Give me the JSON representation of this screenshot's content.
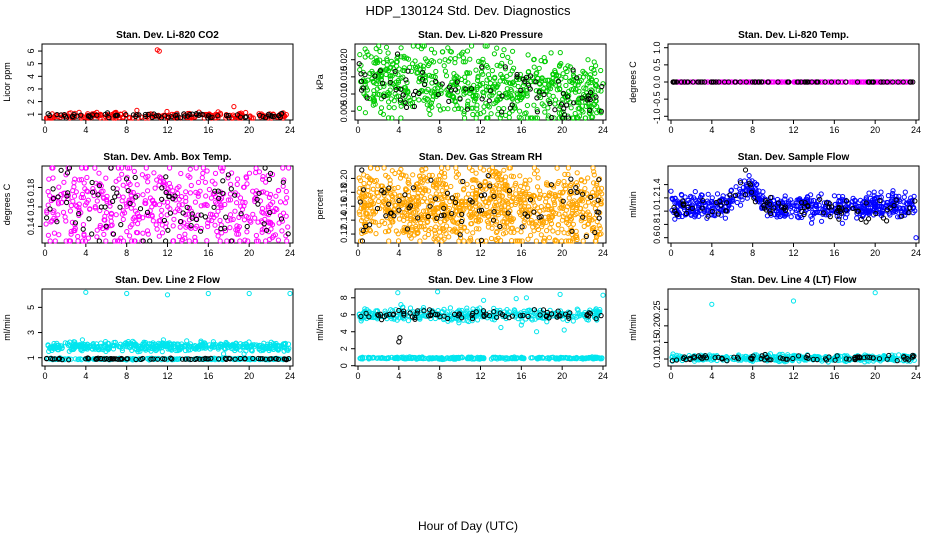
{
  "title": "HDP_130124  Std. Dev. Diagnostics",
  "xlabel": "Hour of Day (UTC)",
  "colors": {
    "black": "#000000",
    "red": "#ff0000",
    "green": "#00cc00",
    "magenta": "#ff00ff",
    "orange": "#ffa500",
    "blue": "#0000ff",
    "cyan": "#00e5ee"
  },
  "chart_data": [
    {
      "type": "scatter",
      "title": "Stan. Dev. Li-820 CO2",
      "ylabel": "Licor ppm",
      "xticks": [
        "0",
        "4",
        "8",
        "12",
        "16",
        "20",
        "24"
      ],
      "yticks": [
        "1",
        "2",
        "3",
        "4",
        "5",
        "6"
      ],
      "ytick_values": [
        1,
        2,
        3,
        4,
        5,
        6
      ],
      "xlim": [
        0,
        24
      ],
      "ylim": [
        0.7,
        6.4
      ],
      "series": [
        {
          "color": "red",
          "base": 0.85,
          "spread": 0.15,
          "n": 220,
          "outliers": [
            [
              11.0,
              6.1
            ],
            [
              11.2,
              6.0
            ],
            [
              18.5,
              1.6
            ],
            [
              9.0,
              1.3
            ]
          ]
        },
        {
          "color": "black",
          "base": 0.88,
          "spread": 0.1,
          "n": 80,
          "outliers": []
        }
      ]
    },
    {
      "type": "scatter",
      "title": "Stan. Dev. Li-820 Pressure",
      "ylabel": "kPa",
      "xticks": [
        "0",
        "4",
        "8",
        "12",
        "16",
        "20",
        "24"
      ],
      "yticks": [
        "0.005",
        "0.010",
        "0.015",
        "0.020"
      ],
      "ytick_values": [
        0.005,
        0.01,
        0.015,
        0.02
      ],
      "xlim": [
        0,
        24
      ],
      "ylim": [
        0.003,
        0.024
      ],
      "series": [
        {
          "color": "green",
          "base": 0.012,
          "spread": 0.005,
          "n": 700,
          "trend": -0.0002,
          "outliers": [
            [
              7.2,
              0.023
            ],
            [
              7.5,
              0.022
            ],
            [
              24,
              0.013
            ]
          ]
        },
        {
          "color": "black",
          "base": 0.0115,
          "spread": 0.004,
          "n": 90,
          "trend": -0.0002,
          "outliers": []
        }
      ]
    },
    {
      "type": "scatter",
      "title": "Stan. Dev. Li-820 Temp.",
      "ylabel": "degrees C",
      "xticks": [
        "0",
        "4",
        "8",
        "12",
        "16",
        "20",
        "24"
      ],
      "yticks": [
        "-1.0",
        "-0.5",
        "0.0",
        "0.5",
        "1.0"
      ],
      "ytick_values": [
        -1.0,
        -0.5,
        0.0,
        0.5,
        1.0
      ],
      "xlim": [
        0,
        24
      ],
      "ylim": [
        -1.05,
        1.05
      ],
      "series": [
        {
          "color": "magenta",
          "base": 0.0,
          "spread": 0.0,
          "n": 260,
          "outliers": []
        },
        {
          "color": "black",
          "base": 0.0,
          "spread": 0.0,
          "n": 80,
          "outliers": []
        }
      ]
    },
    {
      "type": "scatter",
      "title": "Stan. Dev. Amb. Box Temp.",
      "ylabel": "degrees C",
      "xticks": [
        "0",
        "4",
        "8",
        "12",
        "16",
        "20",
        "24"
      ],
      "yticks": [
        "0.14",
        "0.16",
        "0.18"
      ],
      "ytick_values": [
        0.14,
        0.16,
        0.18
      ],
      "xlim": [
        0,
        24
      ],
      "ylim": [
        0.125,
        0.2
      ],
      "series": [
        {
          "color": "magenta",
          "base": 0.16,
          "spread": 0.022,
          "n": 500,
          "outliers": []
        },
        {
          "color": "black",
          "base": 0.16,
          "spread": 0.02,
          "n": 90,
          "outliers": [
            [
              2.2,
              0.195
            ]
          ]
        }
      ]
    },
    {
      "type": "scatter",
      "title": "Stan. Dev. Gas Stream RH",
      "ylabel": "percent",
      "xticks": [
        "0",
        "4",
        "8",
        "12",
        "16",
        "20",
        "24"
      ],
      "yticks": [
        "0.12",
        "0.14",
        "0.16",
        "0.18",
        "0.20"
      ],
      "ytick_values": [
        0.12,
        0.14,
        0.16,
        0.18,
        0.2
      ],
      "xlim": [
        0,
        24
      ],
      "ylim": [
        0.11,
        0.215
      ],
      "series": [
        {
          "color": "orange",
          "base": 0.16,
          "spread": 0.028,
          "n": 1000,
          "outliers": [
            [
              13.5,
              0.21
            ],
            [
              13.8,
              0.205
            ],
            [
              13.5,
              0.112
            ]
          ]
        },
        {
          "color": "black",
          "base": 0.16,
          "spread": 0.02,
          "n": 80,
          "outliers": []
        }
      ]
    },
    {
      "type": "scatter",
      "title": "Stan. Dev. Sample Flow",
      "ylabel": "ml/min",
      "xticks": [
        "0",
        "4",
        "8",
        "12",
        "16",
        "20",
        "24"
      ],
      "yticks": [
        "0.6",
        "0.8",
        "1.0",
        "1.2",
        "1.4"
      ],
      "ytick_values": [
        0.6,
        0.8,
        1.0,
        1.2,
        1.4
      ],
      "xlim": [
        0,
        24
      ],
      "ylim": [
        0.55,
        1.65
      ],
      "series": [
        {
          "color": "blue",
          "base": 1.07,
          "spread": 0.09,
          "n": 600,
          "bump": [
            7.5,
            0.3,
            1.2
          ],
          "outliers": [
            [
              24,
              0.6
            ],
            [
              0,
              1.3
            ]
          ]
        },
        {
          "color": "black",
          "base": 1.05,
          "spread": 0.1,
          "n": 90,
          "bump": [
            7.5,
            0.25,
            1.2
          ],
          "outliers": [
            [
              7.3,
              1.62
            ]
          ]
        }
      ]
    },
    {
      "type": "scatter",
      "title": "Stan. Dev. Line 2 Flow",
      "ylabel": "ml/min",
      "xticks": [
        "0",
        "4",
        "8",
        "12",
        "16",
        "20",
        "24"
      ],
      "yticks": [
        "1",
        "3",
        "5"
      ],
      "ytick_values": [
        1,
        3,
        5
      ],
      "xlim": [
        0,
        24
      ],
      "ylim": [
        0.5,
        6.3
      ],
      "series": [
        {
          "color": "cyan",
          "base": 1.9,
          "spread": 0.18,
          "n": 450,
          "outliers": [
            [
              4,
              6.2
            ],
            [
              8,
              6.1
            ],
            [
              12,
              6.0
            ],
            [
              16,
              6.1
            ],
            [
              20,
              6.1
            ],
            [
              24,
              6.1
            ],
            [
              17.5,
              1.3
            ],
            [
              19.5,
              1.3
            ]
          ]
        },
        {
          "color": "cyan",
          "base": 0.9,
          "spread": 0.03,
          "n": 250,
          "outliers": []
        },
        {
          "color": "black",
          "base": 0.9,
          "spread": 0.03,
          "n": 80,
          "outliers": []
        }
      ]
    },
    {
      "type": "scatter",
      "title": "Stan. Dev. Line 3 Flow",
      "ylabel": "ml/min",
      "xticks": [
        "0",
        "4",
        "8",
        "12",
        "16",
        "20",
        "24"
      ],
      "yticks": [
        "0",
        "2",
        "4",
        "6",
        "8"
      ],
      "ytick_values": [
        0,
        2,
        4,
        6,
        8
      ],
      "xlim": [
        0,
        24
      ],
      "ylim": [
        0.2,
        8.8
      ],
      "series": [
        {
          "color": "cyan",
          "base": 6.0,
          "spread": 0.35,
          "n": 350,
          "outliers": [
            [
              3.9,
              8.6
            ],
            [
              7.8,
              8.7
            ],
            [
              12.3,
              7.7
            ],
            [
              15.5,
              7.9
            ],
            [
              16.5,
              8.0
            ],
            [
              19.8,
              8.4
            ],
            [
              24,
              8.3
            ],
            [
              14,
              4.5
            ],
            [
              16,
              4.8
            ],
            [
              17.5,
              4.0
            ],
            [
              20.2,
              4.2
            ],
            [
              4.4,
              6.9
            ],
            [
              4.2,
              7.2
            ]
          ]
        },
        {
          "color": "cyan",
          "base": 0.9,
          "spread": 0.06,
          "n": 300,
          "outliers": []
        },
        {
          "color": "black",
          "base": 6.0,
          "spread": 0.25,
          "n": 80,
          "outliers": [
            [
              4.0,
              2.8
            ],
            [
              4.1,
              3.3
            ],
            [
              4.0,
              6.5
            ]
          ]
        }
      ]
    },
    {
      "type": "scatter",
      "title": "Stan. Dev. Line 4 (LT) Flow",
      "ylabel": "ml/min",
      "xticks": [
        "0",
        "4",
        "8",
        "12",
        "16",
        "20",
        "24"
      ],
      "yticks": [
        "0.10",
        "0.15",
        "0.20",
        "0.25"
      ],
      "ytick_values": [
        0.1,
        0.15,
        0.2,
        0.25
      ],
      "xlim": [
        0,
        24
      ],
      "ylim": [
        0.085,
        0.305
      ],
      "series": [
        {
          "color": "cyan",
          "base": 0.103,
          "spread": 0.005,
          "n": 380,
          "outliers": [
            [
              4.0,
              0.265
            ],
            [
              12.0,
              0.275
            ],
            [
              20.0,
              0.3
            ],
            [
              0.2,
              0.115
            ]
          ]
        },
        {
          "color": "black",
          "base": 0.103,
          "spread": 0.004,
          "n": 80,
          "outliers": []
        }
      ]
    }
  ]
}
